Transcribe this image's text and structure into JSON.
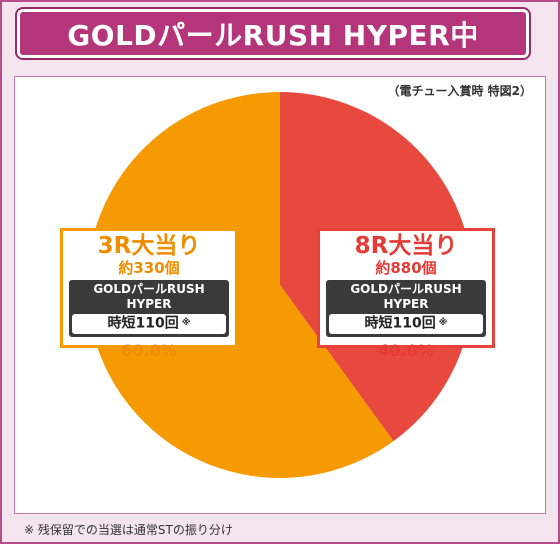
{
  "header": {
    "title": "GOLDパールRUSH HYPER中"
  },
  "note": "（電チュー入賞時 特図2）",
  "footnote": "※ 残保留での当選は通常STの振り分け",
  "colors": {
    "frame": "#b94b88",
    "orange": "#f59a00",
    "red": "#e8493e"
  },
  "chart_data": {
    "type": "pie",
    "slices": [
      {
        "label": "8R大当り",
        "rounds": "約880個",
        "mode": "GOLDパールRUSH HYPER",
        "st": "時短110回",
        "st_mark": "※",
        "percent_label": "40.0%",
        "value": 40.0,
        "color": "#e8493e"
      },
      {
        "label": "3R大当り",
        "rounds": "約330個",
        "mode": "GOLDパールRUSH HYPER",
        "st": "時短110回",
        "st_mark": "※",
        "percent_label": "60.0%",
        "value": 60.0,
        "color": "#f59a00"
      }
    ]
  }
}
